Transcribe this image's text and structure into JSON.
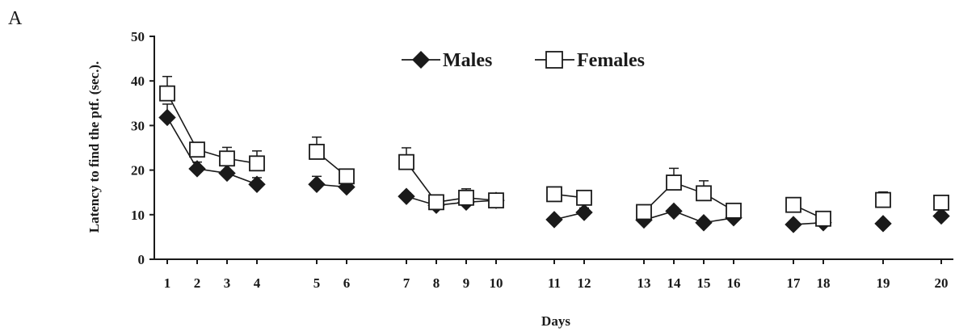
{
  "panel_label": "A",
  "chart_data": {
    "type": "line",
    "title": "",
    "xlabel": "Days",
    "ylabel": "Latency to find the ptf. (sec.).",
    "ylim": [
      0,
      50
    ],
    "yticks": [
      0,
      10,
      20,
      30,
      40,
      50
    ],
    "x": [
      1,
      2,
      3,
      4,
      5,
      6,
      7,
      8,
      9,
      10,
      11,
      12,
      13,
      14,
      15,
      16,
      17,
      18,
      19,
      20
    ],
    "xtick_labels": [
      "1",
      "2",
      "3",
      "4",
      "5",
      "6",
      "7",
      "8",
      "9",
      "10",
      "11",
      "12",
      "13",
      "14",
      "15",
      "16",
      "17",
      "18",
      "19",
      "20"
    ],
    "segments": [
      [
        1,
        4
      ],
      [
        5,
        6
      ],
      [
        7,
        10
      ],
      [
        11,
        12
      ],
      [
        13,
        16
      ],
      [
        17,
        18
      ],
      [
        19,
        19
      ],
      [
        20,
        20
      ]
    ],
    "legend_position": "top-center",
    "grid": false,
    "series": [
      {
        "name": "Males",
        "marker": "diamond-filled",
        "color": "#1a1a1a",
        "values": [
          31.8,
          20.3,
          19.3,
          16.8,
          16.8,
          16.2,
          14.1,
          12.1,
          12.8,
          13.2,
          8.9,
          10.5,
          8.8,
          10.8,
          8.2,
          9.3,
          7.8,
          8.2,
          8.0,
          9.7
        ],
        "errors": [
          3.0,
          1.5,
          2.0,
          1.5,
          1.8,
          1.0,
          0.8,
          0.8,
          0.8,
          0.8,
          0.5,
          1.0,
          0.5,
          0.8,
          0.5,
          0.5,
          0.5,
          0.5,
          0.5,
          0.8
        ]
      },
      {
        "name": "Females",
        "marker": "square-open",
        "color": "#1a1a1a",
        "values": [
          37.2,
          24.6,
          22.6,
          21.5,
          24.1,
          18.6,
          21.8,
          12.8,
          13.8,
          13.2,
          14.6,
          13.8,
          10.6,
          17.2,
          14.8,
          10.9,
          12.2,
          9.1,
          13.3,
          12.7
        ],
        "errors": [
          3.8,
          0.8,
          2.5,
          2.8,
          3.3,
          0.8,
          3.2,
          0.6,
          2.0,
          0.8,
          0.8,
          0.6,
          0.6,
          3.2,
          2.8,
          0.6,
          0.8,
          0.6,
          1.8,
          0.8
        ]
      }
    ]
  }
}
